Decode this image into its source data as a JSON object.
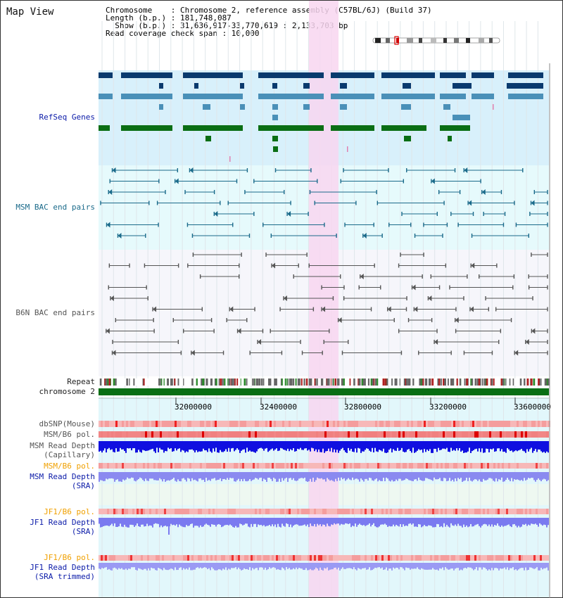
{
  "app": {
    "title": "Map View"
  },
  "header": {
    "line1": "Chromosome    : Chromosome 2, reference assembly (C57BL/6J) (Build 37)",
    "line2": "Length (b.p.) : 181,748,087",
    "line3": "  Show (b.p.) : 31,636,917-33,770,619 : 2,133,703 bp",
    "line4": "Read coverage check span : 10,000"
  },
  "tracks": {
    "refseq": "RefSeq Genes",
    "msm_bac": "MSM BAC end pairs",
    "b6n_bac": "B6N BAC end pairs",
    "repeat": "Repeat",
    "chromosome": "chromosome 2",
    "dbsnp": "dbSNP(Mouse)",
    "msm_b6_pol_1": "MSM/B6 pol.",
    "msm_depth_cap_1": "MSM Read Depth",
    "msm_depth_cap_2": "(Capillary)",
    "msm_b6_pol_2": "MSM/B6 pol.",
    "msm_depth_sra_1": "MSM Read Depth",
    "msm_depth_sra_2": "(SRA)",
    "jf1_pol_1": "JF1/B6 pol.",
    "jf1_depth_sra_1": "JF1 Read Depth",
    "jf1_depth_sra_2": "(SRA)",
    "jf1_pol_2": "JF1/B6 pol.",
    "jf1_depth_trim_1": "JF1 Read Depth",
    "jf1_depth_trim_2": "(SRA trimmed)"
  },
  "axis": {
    "ticks": [
      "32000000",
      "32400000",
      "32800000",
      "33200000",
      "33600000"
    ]
  },
  "colors": {
    "highlight": "#f8d6f0",
    "refseq_bg": "#d8f0fb",
    "msm_bg": "#e6fafc",
    "b6n_bg": "#f6f6fb",
    "depth_bg": "#e2f7fb",
    "sra_bg": "#eef8f1",
    "gene_navy": "#0a3a6e",
    "gene_blue": "#4a90b8",
    "gene_green": "#0a6e14",
    "msm_line": "#1a6a8a",
    "b6n_line": "#555555",
    "chrom_green": "#0a6e14"
  }
}
